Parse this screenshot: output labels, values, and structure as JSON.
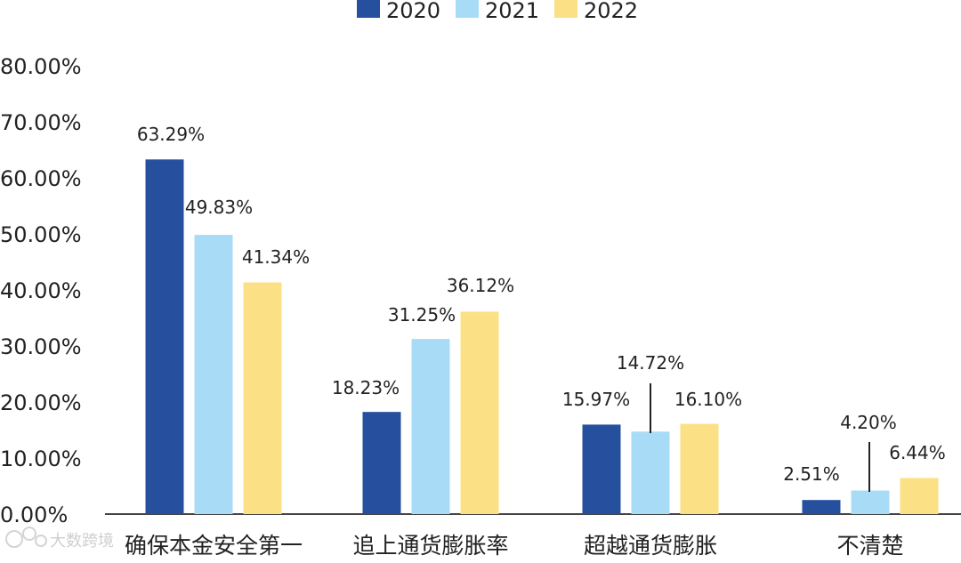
{
  "chart_data": {
    "type": "bar",
    "title": "",
    "xlabel": "",
    "ylabel": "",
    "ylim": [
      0,
      80
    ],
    "yticks": [
      0,
      10,
      20,
      30,
      40,
      50,
      60,
      70,
      80
    ],
    "ytick_labels": [
      "0.00%",
      "10.00%",
      "20.00%",
      "30.00%",
      "40.00%",
      "50.00%",
      "60.00%",
      "70.00%",
      "80.00%"
    ],
    "categories": [
      "确保本金安全第一",
      "追上通货膨胀率",
      "超越通货膨胀",
      "不清楚"
    ],
    "series": [
      {
        "name": "2020",
        "color": "#26509e",
        "values": [
          63.29,
          18.23,
          15.97,
          2.51
        ],
        "labels": [
          "63.29%",
          "18.23%",
          "15.97%",
          "2.51%"
        ]
      },
      {
        "name": "2021",
        "color": "#a8dcf6",
        "values": [
          49.83,
          31.25,
          14.72,
          4.2
        ],
        "labels": [
          "49.83%",
          "31.25%",
          "14.72%",
          "4.20%"
        ]
      },
      {
        "name": "2022",
        "color": "#fbe086",
        "values": [
          41.34,
          36.12,
          16.1,
          6.44
        ],
        "labels": [
          "41.34%",
          "36.12%",
          "16.10%",
          "6.44%"
        ]
      }
    ],
    "legend": "top-center",
    "grid": false
  },
  "watermark": {
    "text": "大数跨境"
  }
}
